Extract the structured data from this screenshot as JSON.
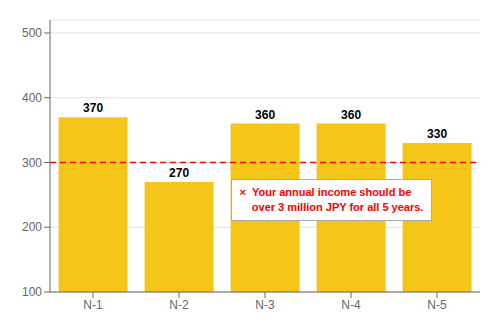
{
  "chart_data": {
    "type": "bar",
    "categories": [
      "N-1",
      "N-2",
      "N-3",
      "N-4",
      "N-5"
    ],
    "values": [
      370,
      270,
      360,
      360,
      330
    ],
    "color": "#F5C518",
    "ylim": [
      100,
      520
    ],
    "yticks": [
      100,
      200,
      300,
      400,
      500
    ],
    "grid": true,
    "data_labels": true,
    "reference_line": {
      "y": 300,
      "color": "#FF0000",
      "line_style": "dashed"
    },
    "annotation": {
      "lines": [
        "×  Your annual income should be",
        "    over 3 million JPY for all 5 years."
      ],
      "color": "#FF0000"
    }
  }
}
